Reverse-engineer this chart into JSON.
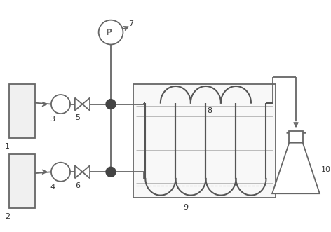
{
  "bg_color": "#ffffff",
  "line_color": "#666666",
  "label_color": "#333333",
  "fig_width": 4.72,
  "fig_height": 3.31,
  "dpi": 100
}
